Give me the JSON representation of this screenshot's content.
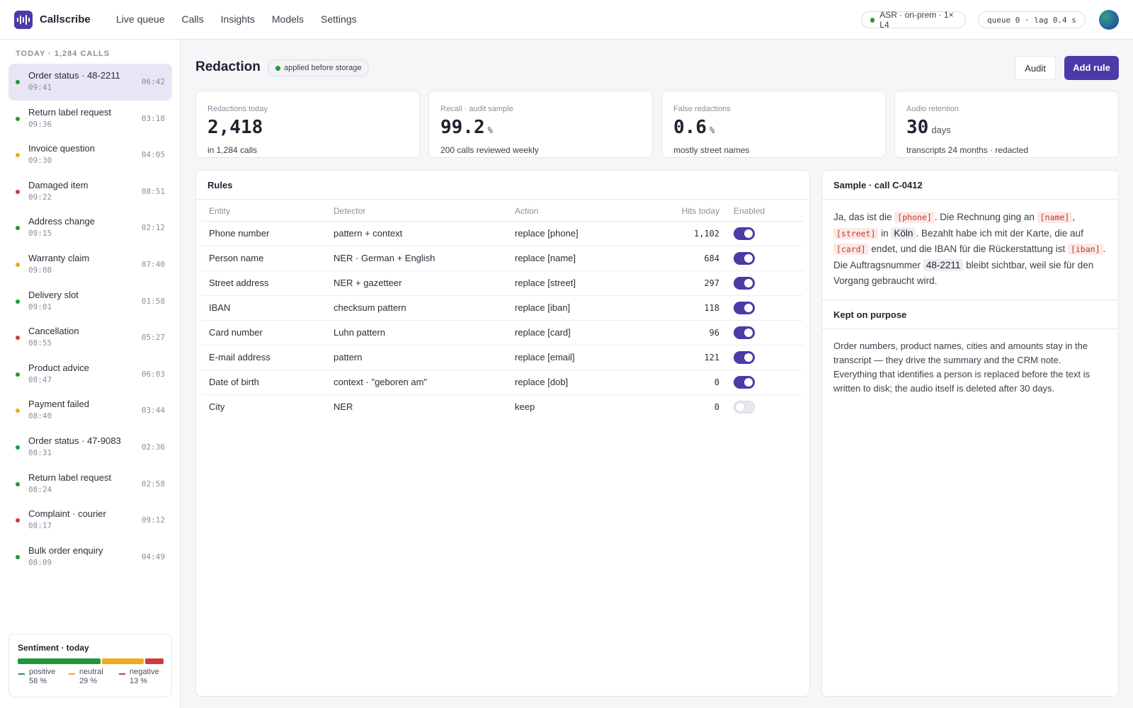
{
  "app": {
    "name": "Callscribe"
  },
  "nav": [
    "Live queue",
    "Calls",
    "Insights",
    "Models",
    "Settings"
  ],
  "status": {
    "asr": "ASR · on-prem · 1× L4",
    "queue": "queue 0 · lag 0.4 s"
  },
  "sidebar": {
    "heading": "TODAY · 1,284 CALLS",
    "calls": [
      {
        "title": "Order status · 48-2211",
        "time": "09:41",
        "duration": "06:42",
        "sentiment": "positive",
        "active": true
      },
      {
        "title": "Return label request",
        "time": "09:36",
        "duration": "03:18",
        "sentiment": "positive"
      },
      {
        "title": "Invoice question",
        "time": "09:30",
        "duration": "04:05",
        "sentiment": "neutral"
      },
      {
        "title": "Damaged item",
        "time": "09:22",
        "duration": "08:51",
        "sentiment": "negative"
      },
      {
        "title": "Address change",
        "time": "09:15",
        "duration": "02:12",
        "sentiment": "positive"
      },
      {
        "title": "Warranty claim",
        "time": "09:08",
        "duration": "07:40",
        "sentiment": "neutral"
      },
      {
        "title": "Delivery slot",
        "time": "09:01",
        "duration": "01:58",
        "sentiment": "positive"
      },
      {
        "title": "Cancellation",
        "time": "08:55",
        "duration": "05:27",
        "sentiment": "negative"
      },
      {
        "title": "Product advice",
        "time": "08:47",
        "duration": "06:03",
        "sentiment": "positive"
      },
      {
        "title": "Payment failed",
        "time": "08:40",
        "duration": "03:44",
        "sentiment": "neutral"
      },
      {
        "title": "Order status · 47-9083",
        "time": "08:31",
        "duration": "02:36",
        "sentiment": "positive"
      },
      {
        "title": "Return label request",
        "time": "08:24",
        "duration": "02:58",
        "sentiment": "positive"
      },
      {
        "title": "Complaint · courier",
        "time": "08:17",
        "duration": "09:12",
        "sentiment": "negative"
      },
      {
        "title": "Bulk order enquiry",
        "time": "08:09",
        "duration": "04:49",
        "sentiment": "positive"
      }
    ],
    "sentiment": {
      "title": "Sentiment · today",
      "items": [
        {
          "label": "positive",
          "value": "58 %",
          "share": 58
        },
        {
          "label": "neutral",
          "value": "29 %",
          "share": 29
        },
        {
          "label": "negative",
          "value": "13 %",
          "share": 13
        }
      ]
    }
  },
  "colors": {
    "accent": "#4b3aa8",
    "positive": "#1f9a3a",
    "neutral": "#f2a81d",
    "negative": "#cf3b3b"
  },
  "page": {
    "title": "Redaction",
    "tag": "applied before storage",
    "audit_label": "Audit",
    "add_rule_label": "Add rule"
  },
  "stats": [
    {
      "label": "Redactions today",
      "value": "2,418",
      "unit": "",
      "sub": "in 1,284 calls"
    },
    {
      "label": "Recall · audit sample",
      "value": "99.2",
      "unit": "%",
      "sub": "200 calls reviewed weekly"
    },
    {
      "label": "False redactions",
      "value": "0.6",
      "unit": "%",
      "sub": "mostly street names"
    },
    {
      "label": "Audio retention",
      "value": "30",
      "unit": "days",
      "sub": "transcripts 24 months · redacted"
    }
  ],
  "rules": {
    "title": "Rules",
    "columns": [
      "Entity",
      "Detector",
      "Action",
      "Hits today",
      "Enabled"
    ],
    "rows": [
      {
        "entity": "Phone number",
        "detector": "pattern + context",
        "action": "replace [phone]",
        "hits": "1,102",
        "enabled": true
      },
      {
        "entity": "Person name",
        "detector": "NER · German + English",
        "action": "replace [name]",
        "hits": "684",
        "enabled": true
      },
      {
        "entity": "Street address",
        "detector": "NER + gazetteer",
        "action": "replace [street]",
        "hits": "297",
        "enabled": true
      },
      {
        "entity": "IBAN",
        "detector": "checksum pattern",
        "action": "replace [iban]",
        "hits": "118",
        "enabled": true
      },
      {
        "entity": "Card number",
        "detector": "Luhn pattern",
        "action": "replace [card]",
        "hits": "96",
        "enabled": true
      },
      {
        "entity": "E-mail address",
        "detector": "pattern",
        "action": "replace [email]",
        "hits": "121",
        "enabled": true
      },
      {
        "entity": "Date of birth",
        "detector": "context · \"geboren am\"",
        "action": "replace [dob]",
        "hits": "0",
        "enabled": true
      },
      {
        "entity": "City",
        "detector": "NER",
        "action": "keep",
        "hits": "0",
        "enabled": false
      }
    ]
  },
  "sample": {
    "title": "Sample · call C-0412",
    "segments": [
      {
        "t": "Ja, das ist die "
      },
      {
        "t": "[phone]",
        "k": "red"
      },
      {
        "t": ". Die Rechnung ging an "
      },
      {
        "t": "[name]",
        "k": "red"
      },
      {
        "t": ", "
      },
      {
        "t": "[street]",
        "k": "red"
      },
      {
        "t": " in "
      },
      {
        "t": "Köln",
        "k": "kept"
      },
      {
        "t": ". Bezahlt habe ich mit der Karte, die auf "
      },
      {
        "t": "[card]",
        "k": "red"
      },
      {
        "t": " endet, und die IBAN für die Rückerstattung ist "
      },
      {
        "t": "[iban]",
        "k": "red"
      },
      {
        "t": ". Die Auftragsnummer "
      },
      {
        "t": "48-2211",
        "k": "kept"
      },
      {
        "t": " bleibt sichtbar, weil sie für den Vorgang gebraucht wird."
      }
    ],
    "kept_title": "Kept on purpose",
    "kept_text": "Order numbers, product names, cities and amounts stay in the transcript — they drive the summary and the CRM note. Everything that identifies a person is replaced before the text is written to disk; the audio itself is deleted after 30 days."
  }
}
